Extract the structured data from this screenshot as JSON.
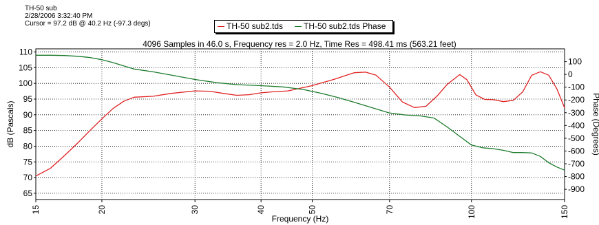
{
  "header": {
    "line1": "TH-50 sub",
    "line2": "2/28/2006 3:32:40 PM",
    "line3": "Cursor = 97.2 dB @ 40.2 Hz (-97.3 degs)"
  },
  "colors": {
    "magnitude": "#e02020",
    "phase": "#1a7a2a",
    "grid": "#000000"
  },
  "chart_data": {
    "type": "line",
    "subtitle": "4096 Samples in 46.0 s, Frequency res = 2.0 Hz, Time Res = 498.41 ms (563.21 feet)",
    "xlabel": "Frequency (Hz)",
    "ylabel_left": "dB (Pascals)",
    "ylabel_right": "Phase (Degrees)",
    "x_scale": "log",
    "xlim": [
      15,
      150
    ],
    "x_ticks": [
      15,
      20,
      30,
      40,
      50,
      70,
      100,
      150
    ],
    "x_tick_labels": [
      "15",
      "20",
      "30",
      "40",
      "50",
      "70",
      "100",
      "150"
    ],
    "ylim_left": [
      63,
      111
    ],
    "y_left_ticks": [
      65,
      70,
      75,
      80,
      85,
      90,
      95,
      100,
      105,
      110
    ],
    "y_left_tick_labels": [
      "65",
      "70",
      "75",
      "80",
      "85",
      "90",
      "95",
      "100",
      "105",
      "110"
    ],
    "ylim_right": [
      -980,
      200
    ],
    "y_right_ticks": [
      100,
      0,
      -100,
      -200,
      -300,
      -400,
      -500,
      -600,
      -700,
      -800,
      -900
    ],
    "y_right_tick_labels": [
      "100",
      "0",
      "-100",
      "-200",
      "-300",
      "-400",
      "-500",
      "-600",
      "-700",
      "-800",
      "-900"
    ],
    "grid": true,
    "legend_position": "top-center",
    "series": [
      {
        "name": "TH-50 sub2.tds",
        "axis": "left",
        "x": [
          15,
          16,
          17,
          18,
          19,
          20,
          21,
          22,
          23,
          25,
          27,
          30,
          32,
          34,
          36,
          38,
          40,
          42,
          45,
          50,
          55,
          60,
          63,
          66,
          70,
          74,
          78,
          82,
          86,
          90,
          95,
          98,
          102,
          106,
          110,
          115,
          120,
          125,
          130,
          135,
          140,
          145,
          150
        ],
        "values": [
          70.5,
          73,
          77,
          81,
          85,
          88.7,
          92,
          94.3,
          95.6,
          95.9,
          96.8,
          97.6,
          97.5,
          96.8,
          96.2,
          96.4,
          97,
          97.3,
          97.6,
          99.3,
          101.3,
          103.4,
          103.6,
          102.6,
          98.8,
          94.1,
          92.3,
          92.7,
          95.9,
          99.7,
          102.8,
          101.2,
          96.3,
          94.9,
          94.8,
          94.2,
          94.6,
          97.3,
          102.6,
          103.7,
          102.6,
          98.3,
          92.2
        ]
      },
      {
        "name": "TH-50 sub2.tds Phase",
        "axis": "right",
        "x": [
          15,
          16,
          17,
          18,
          19,
          20,
          21,
          22,
          23,
          25,
          27,
          30,
          33,
          36,
          40,
          44,
          48,
          52,
          56,
          60,
          65,
          70,
          75,
          80,
          85,
          90,
          95,
          100,
          105,
          110,
          115,
          120,
          125,
          130,
          135,
          140,
          145,
          150
        ],
        "values": [
          150,
          150,
          148,
          142,
          132,
          115,
          92,
          67,
          42,
          20,
          -5,
          -40,
          -65,
          -80,
          -88,
          -98,
          -118,
          -148,
          -182,
          -218,
          -262,
          -302,
          -318,
          -325,
          -342,
          -412,
          -485,
          -553,
          -575,
          -582,
          -595,
          -612,
          -612,
          -615,
          -642,
          -692,
          -725,
          -750
        ]
      }
    ]
  }
}
